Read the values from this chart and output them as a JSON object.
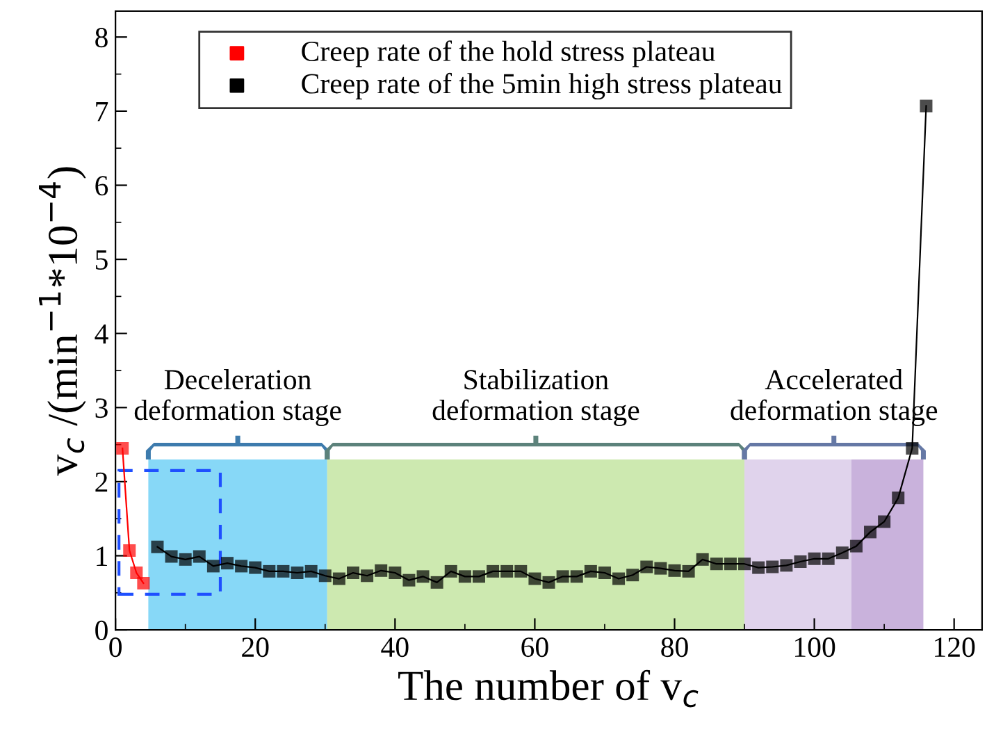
{
  "chart_data": {
    "type": "line",
    "xlabel": "The number of v$_{c}$",
    "ylabel": "v$_{c}$ /(min$^{−1}$*10$^{−4}$)",
    "xlim": [
      0,
      124
    ],
    "xticks": [
      0,
      20,
      40,
      60,
      80,
      100,
      120
    ],
    "ylim": [
      0,
      8.35
    ],
    "yticks": [
      0,
      1,
      2,
      3,
      4,
      5,
      6,
      7,
      8
    ],
    "marker": "square",
    "grid": false,
    "legend": "top left",
    "series": [
      {
        "name": "Creep rate of the hold stress plateau",
        "color": "#ff0000",
        "x": [
          1,
          2,
          3,
          4
        ],
        "values": [
          2.45,
          1.07,
          0.77,
          0.63
        ]
      },
      {
        "name": "Creep rate of the 5min high stress plateau",
        "color": "#000000",
        "x": [
          6,
          8,
          10,
          12,
          14,
          16,
          18,
          20,
          22,
          24,
          26,
          28,
          30,
          32,
          34,
          36,
          38,
          40,
          42,
          44,
          46,
          48,
          50,
          52,
          54,
          56,
          58,
          60,
          62,
          64,
          66,
          68,
          70,
          72,
          74,
          76,
          78,
          80,
          82,
          84,
          86,
          88,
          90,
          92,
          94,
          96,
          98,
          100,
          102,
          104,
          106,
          108,
          110,
          112,
          114,
          116
        ],
        "values": [
          1.12,
          0.99,
          0.95,
          0.99,
          0.86,
          0.9,
          0.86,
          0.84,
          0.79,
          0.79,
          0.77,
          0.79,
          0.73,
          0.69,
          0.77,
          0.73,
          0.8,
          0.77,
          0.67,
          0.72,
          0.64,
          0.79,
          0.72,
          0.72,
          0.79,
          0.79,
          0.79,
          0.69,
          0.64,
          0.72,
          0.72,
          0.79,
          0.77,
          0.69,
          0.74,
          0.85,
          0.83,
          0.8,
          0.79,
          0.95,
          0.89,
          0.89,
          0.89,
          0.84,
          0.85,
          0.87,
          0.92,
          0.96,
          0.96,
          1.04,
          1.13,
          1.32,
          1.46,
          1.78,
          2.45,
          7.07
        ]
      }
    ],
    "bands": [
      {
        "axis": "x",
        "from": 4.7,
        "to": 30.3,
        "label": "Deceleration\ndeformation stage",
        "color": "#87d8f7"
      },
      {
        "axis": "x",
        "from": 30.3,
        "to": 90,
        "label": "Stabilization\ndeformation stage",
        "color": "#cde9b0"
      },
      {
        "axis": "x",
        "from": 90,
        "to": 105.3,
        "label": "Accelerated\ndeformation stage",
        "color": "#e0d3ec"
      },
      {
        "axis": "x",
        "from": 105.3,
        "to": 115.6,
        "label": null,
        "color": "#c9b2dc"
      }
    ]
  }
}
